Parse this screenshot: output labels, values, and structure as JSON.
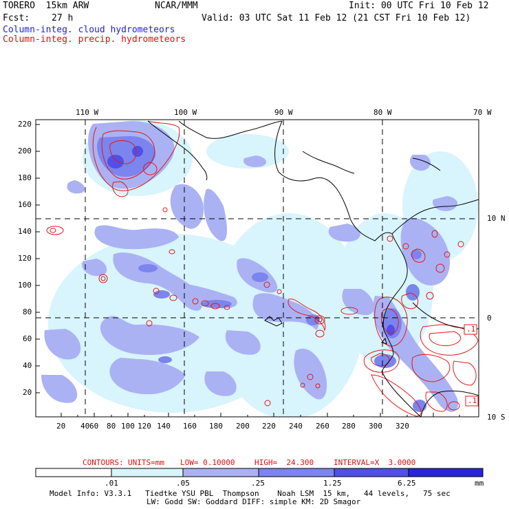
{
  "header": {
    "model": "TORERO  15km ARW",
    "org": "NCAR/MMM",
    "init": "Init: 00 UTC Fri 10 Feb 12",
    "fcst_label": "Fcst:",
    "fcst_value": "27 h",
    "valid": "Valid: 03 UTC Sat 11 Feb 12 (21 CST Fri 10 Feb 12)",
    "field1": "Column-integ. cloud hydrometeors",
    "field2": "Column-integ. precip. hydrometeors"
  },
  "map": {
    "lon_labels": [
      "110 W",
      "100 W",
      "90 W",
      "80 W",
      "70 W"
    ],
    "lat_labels": [
      "10 N",
      "0",
      "10 S"
    ],
    "y_ticks": [
      "220",
      "200",
      "180",
      "160",
      "140",
      "120",
      "100",
      "80",
      "60",
      "40",
      "20"
    ],
    "x_ticks": [
      "20",
      "40",
      "60",
      "80",
      "100",
      "120",
      "140",
      "160",
      "180",
      "200",
      "220",
      "240",
      "260",
      "280",
      "300",
      "320"
    ],
    "box_labels": [
      ".1",
      ".1"
    ]
  },
  "contours": {
    "label": "CONTOURS:",
    "units": "UNITS=mm",
    "low": "LOW= 0.10000",
    "high": "HIGH=  24.300",
    "interval": "INTERVAL=X  3.0000"
  },
  "colorbar": {
    "labels": [
      ".01",
      ".05",
      ".25",
      "1.25",
      "6.25"
    ],
    "unit": "mm",
    "colors": [
      "#ffffff",
      "#d8f4fc",
      "#aab2f4",
      "#7c84ee",
      "#5050e8",
      "#2a22e2"
    ]
  },
  "footer": {
    "line1": "Model Info: V3.3.1   Tiedtke YSU PBL  Thompson    Noah LSM  15 km,   44 levels,   75 sec",
    "line2": "LW: Godd SW: Goddard DIFF: simple KM: 2D Smagor"
  }
}
